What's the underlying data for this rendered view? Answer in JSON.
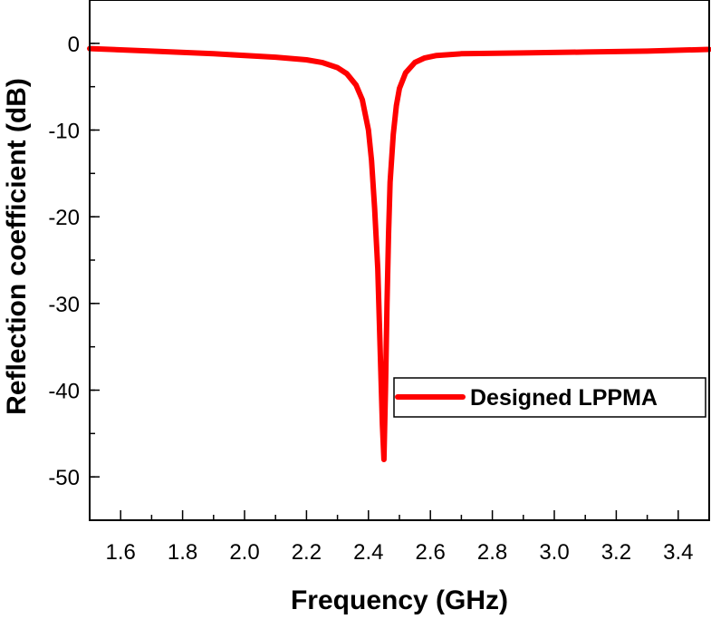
{
  "chart_data": {
    "type": "line",
    "title": "",
    "xlabel": "Frequency (GHz)",
    "ylabel": "Reflection coefficient (dB)",
    "xlim": [
      1.5,
      3.5
    ],
    "ylim": [
      -55,
      5
    ],
    "x_ticks": [
      1.6,
      1.8,
      2.0,
      2.2,
      2.4,
      2.6,
      2.8,
      3.0,
      3.2,
      3.4
    ],
    "x_tick_labels": [
      "1.6",
      "1.8",
      "2.0",
      "2.2",
      "2.4",
      "2.6",
      "2.8",
      "3.0",
      "3.2",
      "3.4"
    ],
    "y_ticks": [
      0,
      -10,
      -20,
      -30,
      -40,
      -50
    ],
    "y_tick_labels": [
      "0",
      "-10",
      "-20",
      "-30",
      "-40",
      "-50"
    ],
    "grid": false,
    "legend_position": "lower-right",
    "series": [
      {
        "name": "Designed LPPMA",
        "color": "#ff0000",
        "x": [
          1.5,
          1.7,
          1.9,
          2.1,
          2.2,
          2.25,
          2.3,
          2.33,
          2.36,
          2.38,
          2.4,
          2.41,
          2.42,
          2.43,
          2.435,
          2.44,
          2.445,
          2.45,
          2.455,
          2.46,
          2.465,
          2.47,
          2.48,
          2.49,
          2.5,
          2.52,
          2.55,
          2.58,
          2.62,
          2.7,
          2.9,
          3.1,
          3.3,
          3.5
        ],
        "values": [
          -0.6,
          -0.9,
          -1.2,
          -1.6,
          -1.9,
          -2.2,
          -2.8,
          -3.5,
          -4.8,
          -6.5,
          -10.0,
          -13.5,
          -19.0,
          -26.0,
          -32.0,
          -38.0,
          -44.0,
          -48.0,
          -40.0,
          -30.0,
          -22.0,
          -16.0,
          -10.5,
          -7.2,
          -5.2,
          -3.4,
          -2.2,
          -1.7,
          -1.4,
          -1.2,
          -1.1,
          -1.0,
          -0.9,
          -0.7
        ]
      }
    ]
  }
}
